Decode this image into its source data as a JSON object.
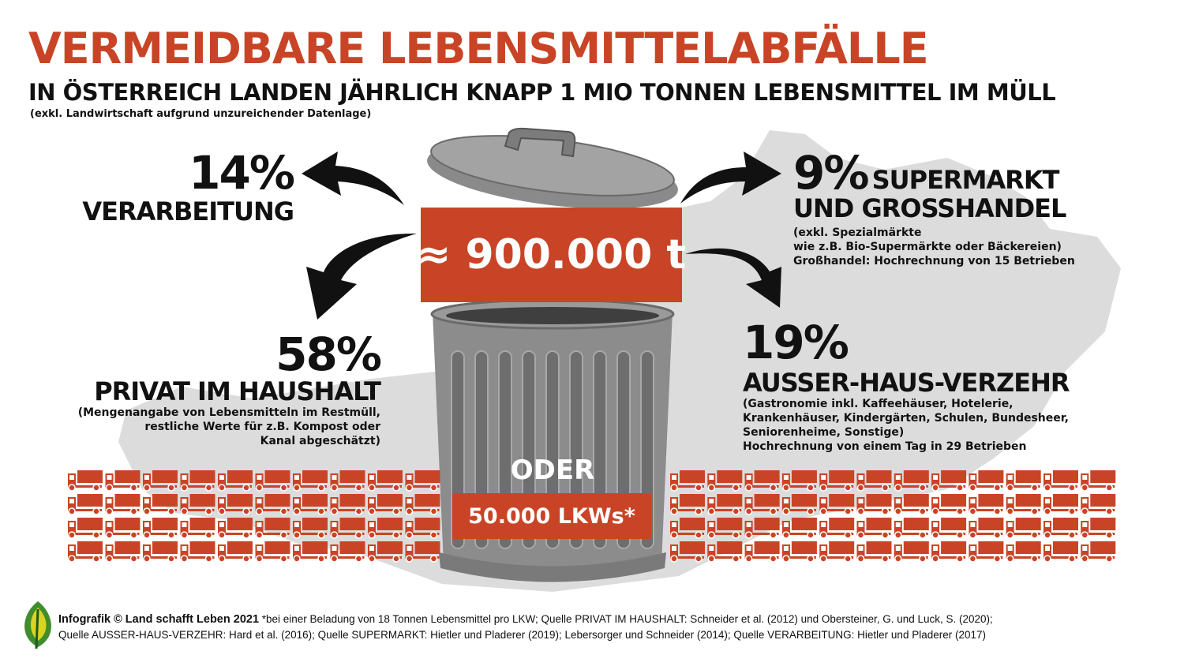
{
  "header": {
    "title": "VERMEIDBARE LEBENSMITTELABFÄLLE",
    "subtitle": "IN ÖSTERREICH LANDEN JÄHRLICH KNAPP 1 MIO TONNEN LEBENSMITTEL IM MÜLL",
    "note": "(exkl. Landwirtschaft aufgrund unzureichender Datenlage)"
  },
  "total": "≈ 900.000 t",
  "oder": "ODER",
  "trucks_label": "50.000 LKWs*",
  "segments": {
    "verarbeitung": {
      "percent": "14%",
      "label": "VERARBEITUNG"
    },
    "supermarkt": {
      "percent": "9%",
      "label1": "SUPERMARKT",
      "label2": "UND GROSSHANDEL",
      "notes": [
        "(exkl. Spezialmärkte",
        "wie z.B. Bio-Supermärkte oder Bäckereien)",
        "Großhandel: Hochrechnung von 15 Betrieben"
      ]
    },
    "haushalt": {
      "percent": "58%",
      "label": "PRIVAT IM HAUSHALT",
      "notes": [
        "(Mengenangabe von Lebensmitteln im Restmüll,",
        "restliche Werte für z.B. Kompost oder",
        "Kanal abgeschätzt)"
      ]
    },
    "ausser_haus": {
      "percent": "19%",
      "label": "AUSSER-HAUS-VERZEHR",
      "notes": [
        "(Gastronomie inkl. Kaffeehäuser, Hotelerie,",
        "Krankenhäuser, Kindergärten, Schulen, Bundesheer,",
        "Seniorenheime, Sonstige)",
        "Hochrechnung von einem Tag in 29 Betrieben"
      ]
    }
  },
  "footer": {
    "brand": "Infografik © Land schafft Leben 2021",
    "line1": " *bei einer Beladung von 18 Tonnen Lebensmittel pro LKW; Quelle PRIVAT IM HAUSHALT: Schneider et al. (2012) und Obersteiner, G. und Luck, S. (2020);",
    "line2": "Quelle AUSSER-HAUS-VERZEHR: Hard et al. (2016); Quelle SUPERMARKT: Hietler und Pladerer (2019); Lebersorger und Schneider (2014); Quelle VERARBEITUNG: Hietler und Pladerer (2017)"
  },
  "colors": {
    "accent": "#c94426",
    "map": "#dcdcdc",
    "can": "#8a8a8a"
  },
  "icons": {
    "truck": "truck-icon",
    "logo": "leaf-logo"
  }
}
